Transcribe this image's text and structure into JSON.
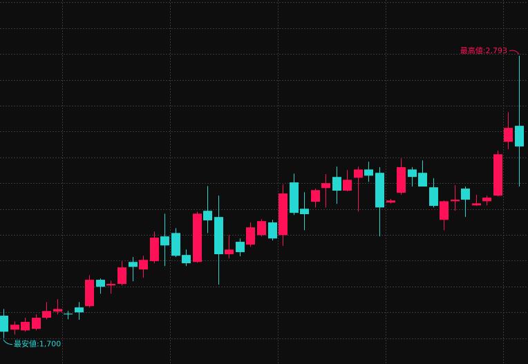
{
  "chart_data": {
    "type": "candlestick",
    "ylim": [
      1600,
      3009
    ],
    "yticks": [
      1700,
      1800,
      1900,
      2000,
      2100,
      2200,
      2300,
      2400,
      2500,
      2600,
      2700,
      2800,
      2900,
      3000
    ],
    "grid": true,
    "up_color": "#ff1057",
    "down_color": "#27d8d2",
    "series": [
      {
        "open": [
          1787,
          1733,
          1730,
          1736,
          1779,
          1803,
          1795,
          1819,
          1824,
          1926,
          1904,
          1910,
          1995,
          1966,
          1998,
          2094,
          2107,
          2022,
          1995,
          2193,
          2169,
          2025,
          2073,
          2062,
          2099,
          2148,
          2099,
          2303,
          2201,
          2228,
          2281,
          2324,
          2271,
          2321,
          2353,
          2340,
          2225,
          2263,
          2353,
          2340,
          2284,
          2158,
          2230,
          2279,
          2214,
          2230,
          2252,
          2460,
          2522
        ],
        "high": [
          1813,
          1765,
          1779,
          1792,
          1840,
          1851,
          1805,
          1840,
          1944,
          1931,
          1923,
          1998,
          2014,
          2019,
          2113,
          2182,
          2126,
          2043,
          2190,
          2289,
          2252,
          2099,
          2086,
          2148,
          2161,
          2158,
          2295,
          2337,
          2265,
          2279,
          2335,
          2364,
          2351,
          2364,
          2383,
          2362,
          2239,
          2396,
          2362,
          2388,
          2319,
          2233,
          2292,
          2287,
          2255,
          2252,
          2426,
          2575,
          2793
        ],
        "low": [
          1700,
          1714,
          1725,
          1730,
          1773,
          1792,
          1773,
          1771,
          1819,
          1872,
          1872,
          1904,
          1920,
          1934,
          1990,
          1979,
          2014,
          1979,
          1992,
          2107,
          1907,
          2009,
          2017,
          2054,
          2094,
          2078,
          2057,
          2177,
          2118,
          2206,
          2206,
          2220,
          2268,
          2190,
          2305,
          2094,
          2222,
          2255,
          2287,
          2287,
          2206,
          2118,
          2193,
          2169,
          2212,
          2214,
          2249,
          2431,
          2287
        ],
        "close": [
          1725,
          1752,
          1763,
          1779,
          1805,
          1813,
          1792,
          1800,
          1926,
          1899,
          1910,
          1974,
          1976,
          2003,
          2089,
          2059,
          2019,
          1990,
          2182,
          2156,
          2025,
          2043,
          2033,
          2129,
          2153,
          2086,
          2260,
          2185,
          2180,
          2273,
          2300,
          2271,
          2313,
          2353,
          2329,
          2206,
          2233,
          2362,
          2324,
          2287,
          2212,
          2230,
          2236,
          2236,
          2222,
          2244,
          2412,
          2514,
          2442
        ]
      }
    ],
    "annotations": {
      "high": "最高値:2,793",
      "low": "最安値:1,700"
    }
  }
}
